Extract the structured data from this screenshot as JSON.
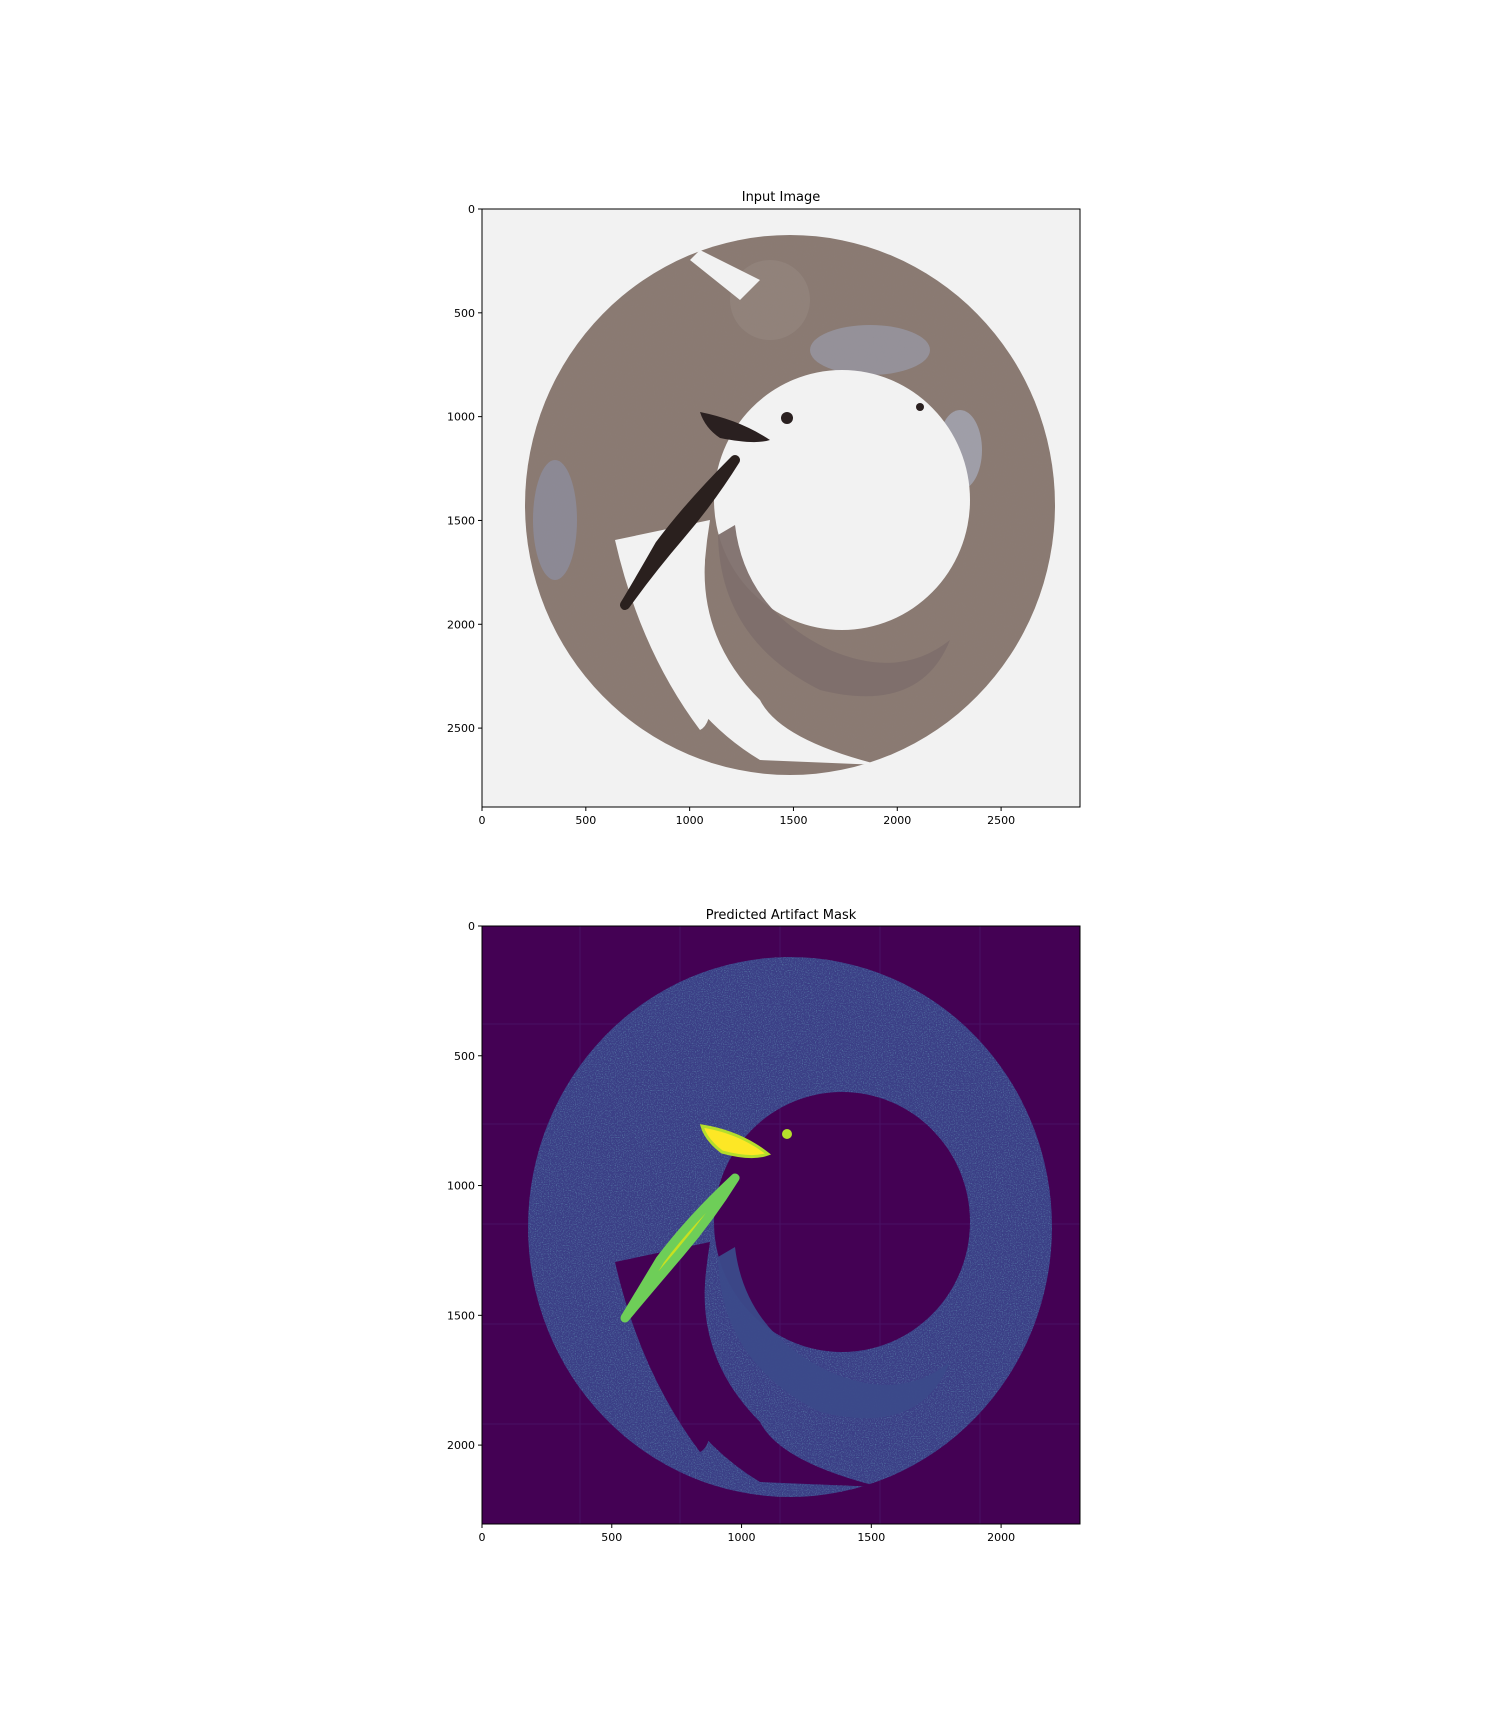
{
  "panels": [
    {
      "title": "Input Image",
      "image_kind": "rgb-histology",
      "extent": {
        "x": [
          0,
          2880
        ],
        "y": [
          2880,
          0
        ]
      },
      "x_ticks": [
        0,
        500,
        1000,
        1500,
        2000,
        2500
      ],
      "y_ticks": [
        0,
        500,
        1000,
        1500,
        2000,
        2500
      ],
      "background_color": "#f2f2f2"
    },
    {
      "title": "Predicted Artifact Mask",
      "image_kind": "viridis-heatmap",
      "extent": {
        "x": [
          0,
          2304
        ],
        "y": [
          2304,
          0
        ]
      },
      "x_ticks": [
        0,
        500,
        1000,
        1500,
        2000
      ],
      "y_ticks": [
        0,
        500,
        1000,
        1500,
        2000
      ],
      "background_color": "#440154",
      "colormap": "viridis"
    }
  ]
}
